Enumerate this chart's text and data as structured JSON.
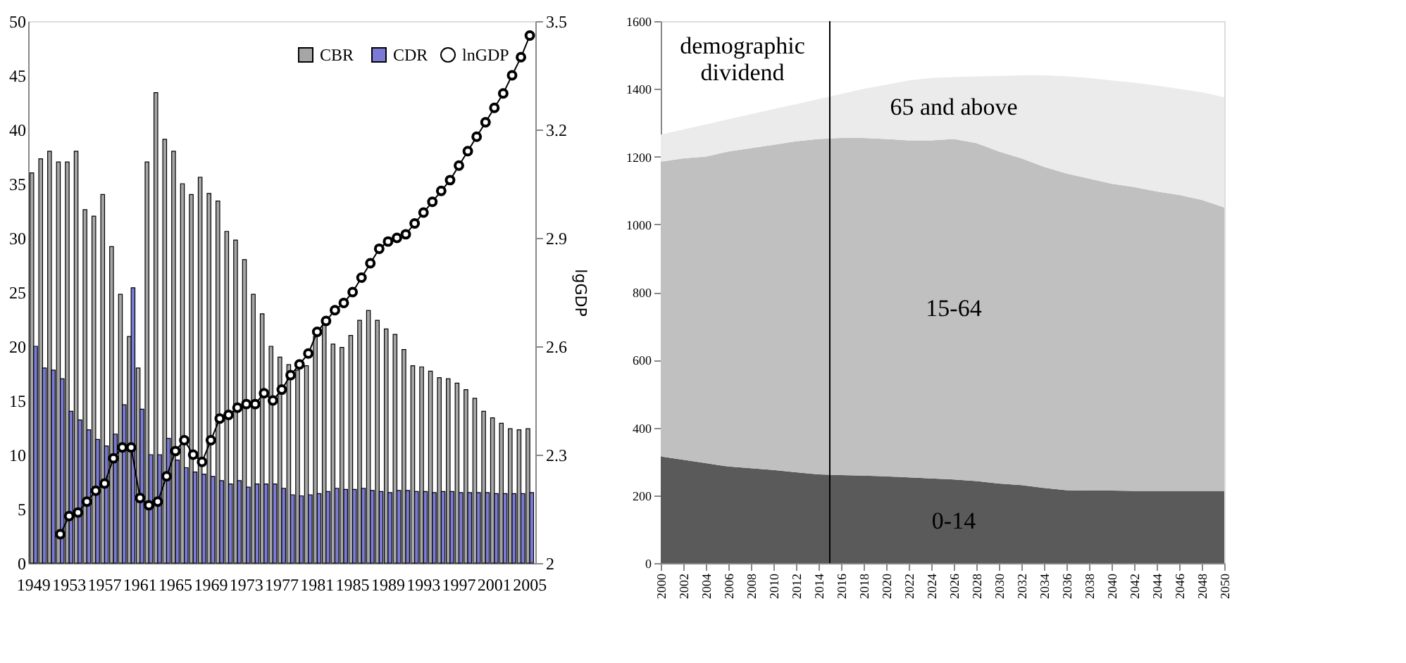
{
  "chart_data": [
    {
      "type": "bar",
      "categories": [
        "1949",
        null,
        null,
        null,
        "1953",
        null,
        null,
        null,
        "1957",
        null,
        null,
        null,
        "1961",
        null,
        null,
        null,
        "1965",
        null,
        null,
        null,
        "1969",
        null,
        null,
        null,
        "1973",
        null,
        null,
        null,
        "1977",
        null,
        null,
        null,
        "1981",
        null,
        null,
        null,
        "1985",
        null,
        null,
        null,
        "1989",
        null,
        null,
        null,
        "1993",
        null,
        null,
        null,
        "1997",
        null,
        null,
        null,
        "2001",
        null,
        null,
        null,
        "2005"
      ],
      "series": [
        {
          "name": "CBR",
          "color": "#a6a6a6",
          "values": [
            36,
            37.3,
            38,
            37,
            37,
            38,
            32.6,
            32,
            34,
            29.2,
            24.8,
            20.9,
            18,
            37,
            43.4,
            39.1,
            38,
            35,
            34,
            35.6,
            34.1,
            33.4,
            30.6,
            29.8,
            28,
            24.8,
            23,
            20,
            19,
            18.3,
            17.8,
            18.2,
            20.9,
            22.3,
            20.2,
            19.9,
            21,
            22.4,
            23.3,
            22.4,
            21.6,
            21.1,
            19.7,
            18.2,
            18.1,
            17.7,
            17.1,
            17,
            16.6,
            16,
            15.2,
            14,
            13.4,
            12.9,
            12.4,
            12.3,
            12.4
          ]
        },
        {
          "name": "CDR",
          "color": "#7b7bd6",
          "values": [
            20,
            18,
            17.8,
            17,
            14,
            13.2,
            12.3,
            11.4,
            10.8,
            11.9,
            14.6,
            25.4,
            14.2,
            10,
            10,
            11.5,
            9.5,
            8.8,
            8.4,
            8.2,
            8,
            7.6,
            7.3,
            7.6,
            7,
            7.3,
            7.3,
            7.3,
            6.9,
            6.3,
            6.2,
            6.3,
            6.4,
            6.6,
            6.9,
            6.8,
            6.8,
            6.9,
            6.7,
            6.6,
            6.5,
            6.7,
            6.7,
            6.6,
            6.6,
            6.5,
            6.6,
            6.6,
            6.5,
            6.5,
            6.5,
            6.5,
            6.4,
            6.4,
            6.4,
            6.4,
            6.5
          ]
        },
        {
          "name": "lnGDP",
          "type": "line",
          "axis": "y2",
          "color": "#000000",
          "values": [
            null,
            null,
            null,
            2.08,
            2.13,
            2.14,
            2.17,
            2.2,
            2.22,
            2.29,
            2.32,
            2.32,
            2.18,
            2.16,
            2.17,
            2.24,
            2.31,
            2.34,
            2.3,
            2.28,
            2.34,
            2.4,
            2.41,
            2.43,
            2.44,
            2.44,
            2.47,
            2.45,
            2.48,
            2.52,
            2.55,
            2.58,
            2.64,
            2.67,
            2.7,
            2.72,
            2.75,
            2.79,
            2.83,
            2.87,
            2.89,
            2.9,
            2.91,
            2.94,
            2.97,
            3.0,
            3.03,
            3.06,
            3.1,
            3.14,
            3.18,
            3.22,
            3.26,
            3.3,
            3.35,
            3.4,
            3.46
          ]
        }
      ],
      "ylim": [
        0,
        50
      ],
      "yticks": [
        0,
        5,
        10,
        15,
        20,
        25,
        30,
        35,
        40,
        45,
        50
      ],
      "y2label": "lgGDP",
      "y2lim": [
        2,
        3.5
      ],
      "y2ticks": [
        2,
        2.3,
        2.6,
        2.9,
        3.2,
        3.5
      ],
      "marker": "circle",
      "legend": "top right"
    },
    {
      "type": "area",
      "stacked": true,
      "x": [
        2000,
        2002,
        2004,
        2006,
        2008,
        2010,
        2012,
        2014,
        2016,
        2018,
        2020,
        2022,
        2024,
        2026,
        2028,
        2030,
        2032,
        2034,
        2036,
        2038,
        2040,
        2042,
        2044,
        2046,
        2048,
        2050
      ],
      "series": [
        {
          "name": "0-14",
          "color": "#5a5a5a",
          "values": [
            315,
            305,
            295,
            285,
            280,
            275,
            268,
            262,
            260,
            258,
            256,
            253,
            250,
            247,
            242,
            235,
            230,
            222,
            215,
            214,
            214,
            213,
            213,
            213,
            213,
            213
          ]
        },
        {
          "name": "15-64",
          "color": "#c0c0c0",
          "values": [
            870,
            890,
            905,
            930,
            945,
            960,
            977,
            990,
            995,
            997,
            996,
            995,
            998,
            1005,
            998,
            980,
            965,
            948,
            935,
            921,
            906,
            897,
            884,
            874,
            859,
            837
          ]
        },
        {
          "name": "65 and above",
          "color": "#ebebeb",
          "values": [
            80,
            85,
            95,
            95,
            100,
            105,
            110,
            118,
            130,
            145,
            160,
            177,
            184,
            183,
            197,
            223,
            245,
            270,
            287,
            297,
            305,
            308,
            313,
            313,
            318,
            325
          ]
        }
      ],
      "xlim": [
        2000,
        2050
      ],
      "xticks": [
        2000,
        2002,
        2004,
        2006,
        2008,
        2010,
        2012,
        2014,
        2016,
        2018,
        2020,
        2022,
        2024,
        2026,
        2028,
        2030,
        2032,
        2034,
        2036,
        2038,
        2040,
        2042,
        2044,
        2046,
        2048,
        2050
      ],
      "ylim": [
        0,
        1600
      ],
      "yticks": [
        0,
        200,
        400,
        600,
        800,
        1000,
        1200,
        1400,
        1600
      ],
      "ref_lines": [
        {
          "axis": "x",
          "value": 2015,
          "color": "#000000"
        }
      ],
      "annotations": [
        "demographic dividend"
      ],
      "legend": false
    }
  ]
}
